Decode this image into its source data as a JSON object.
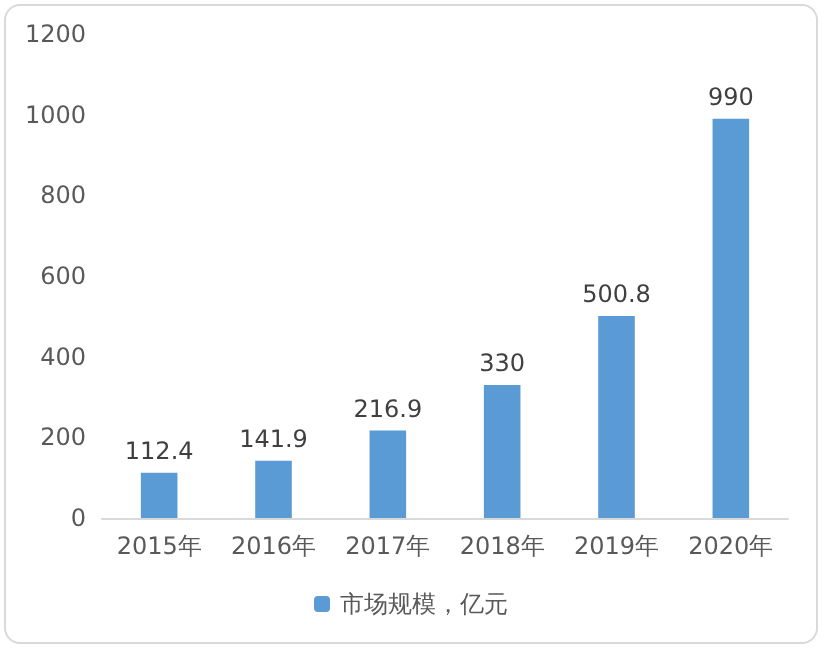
{
  "chart_data": {
    "type": "bar",
    "categories": [
      "2015年",
      "2016年",
      "2017年",
      "2018年",
      "2019年",
      "2020年"
    ],
    "series": [
      {
        "name": "市场规模，亿元",
        "color": "#5b9bd5",
        "values": [
          112.4,
          141.9,
          216.9,
          330,
          500.8,
          990
        ]
      }
    ],
    "ylim": [
      0,
      1200
    ],
    "yticks": [
      0,
      200,
      400,
      600,
      800,
      1000,
      1200
    ],
    "grid": false,
    "legend": "bottom",
    "data_labels": true
  }
}
